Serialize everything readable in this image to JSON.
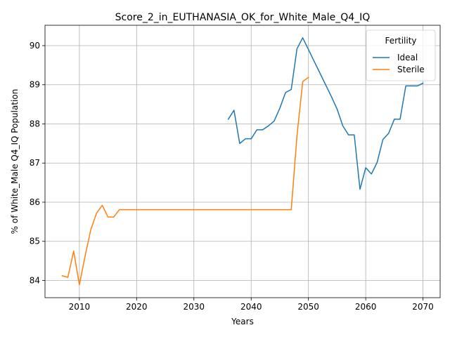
{
  "chart_data": {
    "type": "line",
    "title": "Score_2_in_EUTHANASIA_OK_for_White_Male_Q4_IQ",
    "xlabel": "Years",
    "ylabel": "% of White_Male Q4_IQ Population",
    "xlim": [
      2004,
      2073
    ],
    "ylim": [
      83.56,
      90.52
    ],
    "xticks": [
      2010,
      2020,
      2030,
      2040,
      2050,
      2060,
      2070
    ],
    "yticks": [
      84,
      85,
      86,
      87,
      88,
      89,
      90
    ],
    "grid": true,
    "legend": {
      "title": "Fertility",
      "placement": "top-right"
    },
    "series": [
      {
        "name": "Ideal",
        "color": "#1f77b4",
        "x": [
          2036,
          2037,
          2038,
          2039,
          2040,
          2041,
          2042,
          2043,
          2044,
          2045,
          2046,
          2047,
          2048,
          2049,
          2050,
          2051,
          2052,
          2053,
          2054,
          2055,
          2056,
          2057,
          2058,
          2059,
          2060,
          2061,
          2062,
          2063,
          2064,
          2065,
          2066,
          2067,
          2068,
          2069,
          2070
        ],
        "y": [
          88.12,
          88.35,
          87.5,
          87.62,
          87.62,
          87.85,
          87.85,
          87.95,
          88.07,
          88.4,
          88.8,
          88.88,
          89.92,
          90.2,
          89.9,
          89.6,
          89.3,
          89.0,
          88.7,
          88.38,
          87.95,
          87.72,
          87.72,
          86.33,
          86.88,
          86.72,
          87.02,
          87.6,
          87.76,
          88.12,
          88.12,
          88.97,
          88.97,
          88.97,
          89.04
        ]
      },
      {
        "name": "Sterile",
        "color": "#ff7f0e",
        "x": [
          2007,
          2008,
          2009,
          2010,
          2011,
          2012,
          2013,
          2014,
          2015,
          2016,
          2017,
          2018,
          2019,
          2020,
          2021,
          2022,
          2023,
          2024,
          2025,
          2026,
          2027,
          2028,
          2029,
          2030,
          2031,
          2032,
          2033,
          2034,
          2035,
          2036,
          2037,
          2038,
          2039,
          2040,
          2041,
          2042,
          2043,
          2044,
          2045,
          2046,
          2047,
          2048,
          2049,
          2050
        ],
        "y": [
          84.12,
          84.08,
          84.75,
          83.89,
          84.62,
          85.3,
          85.72,
          85.92,
          85.62,
          85.62,
          85.81,
          85.81,
          85.81,
          85.81,
          85.81,
          85.81,
          85.81,
          85.81,
          85.81,
          85.81,
          85.81,
          85.81,
          85.81,
          85.81,
          85.81,
          85.81,
          85.81,
          85.81,
          85.81,
          85.81,
          85.81,
          85.81,
          85.81,
          85.81,
          85.81,
          85.81,
          85.81,
          85.81,
          85.81,
          85.81,
          85.81,
          87.7,
          89.08,
          89.19
        ]
      }
    ]
  }
}
